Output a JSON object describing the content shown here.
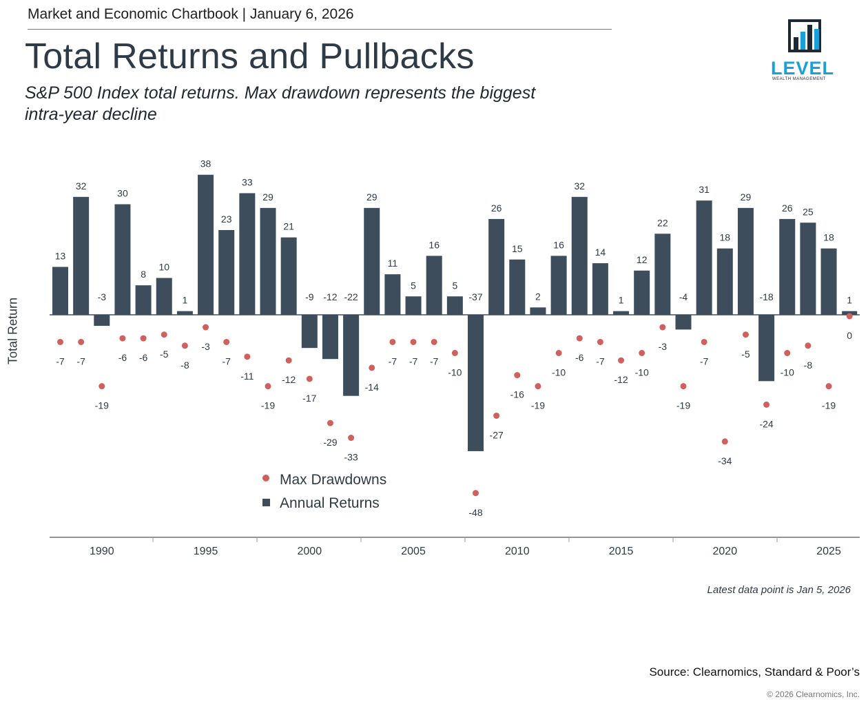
{
  "header": {
    "line": "Market and Economic Chartbook | January 6, 2026",
    "title": "Total Returns and Pullbacks",
    "subtitle": "S&P 500 Index total returns. Max drawdown represents the biggest intra-year decline"
  },
  "logo": {
    "text": "LEVEL",
    "subtext": "WEALTH MANAGEMENT",
    "color": "#1aa0d8"
  },
  "chart_data": {
    "type": "bar",
    "ylabel": "Total Return",
    "years": [
      1988,
      1989,
      1990,
      1991,
      1992,
      1993,
      1994,
      1995,
      1996,
      1997,
      1998,
      1999,
      2000,
      2001,
      2002,
      2003,
      2004,
      2005,
      2006,
      2007,
      2008,
      2009,
      2010,
      2011,
      2012,
      2013,
      2014,
      2015,
      2016,
      2017,
      2018,
      2019,
      2020,
      2021,
      2022,
      2023,
      2024,
      2025,
      2026
    ],
    "x_ticks": [
      1990,
      1995,
      2000,
      2005,
      2010,
      2015,
      2020,
      2025
    ],
    "series": [
      {
        "name": "Annual Returns",
        "color": "#3d4d5c",
        "values": [
          13,
          32,
          -3,
          30,
          8,
          10,
          1,
          38,
          23,
          33,
          29,
          21,
          -9,
          -12,
          -22,
          29,
          11,
          5,
          16,
          5,
          -37,
          26,
          15,
          2,
          16,
          32,
          14,
          1,
          12,
          22,
          -4,
          31,
          18,
          29,
          -18,
          26,
          25,
          18,
          1
        ]
      },
      {
        "name": "Max Drawdowns",
        "color": "#d0605e",
        "values": [
          -7,
          -7,
          -19,
          -6,
          -6,
          -5,
          -8,
          -3,
          -7,
          -11,
          -19,
          -12,
          -17,
          -29,
          -33,
          -14,
          -7,
          -7,
          -7,
          -10,
          -48,
          -27,
          -16,
          -19,
          -10,
          -6,
          -7,
          -12,
          -10,
          -3,
          -19,
          -7,
          -34,
          -5,
          -24,
          -10,
          -8,
          -19,
          0
        ]
      }
    ],
    "legend_position": "bottom-left"
  },
  "footer": {
    "note": "Latest data point is Jan 5, 2026",
    "source": "Source: Clearnomics, Standard & Poor’s",
    "copyright": "© 2026 Clearnomics, Inc."
  }
}
